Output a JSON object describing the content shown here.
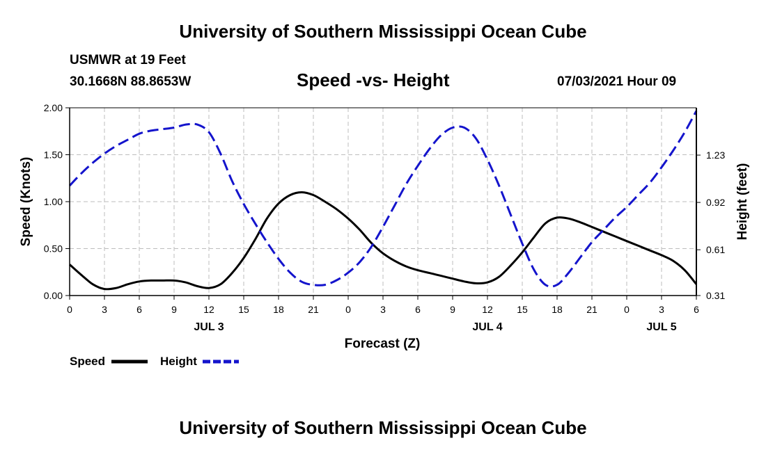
{
  "header": {
    "title": "University of Southern Mississippi Ocean Cube",
    "station": "USMWR at 19 Feet",
    "coordinates": "30.1668N  88.8653W",
    "date": "07/03/2021 Hour 09"
  },
  "footer": {
    "title": "University of Southern Mississippi Ocean Cube"
  },
  "colors": {
    "speed": "#000000",
    "height": "#1414cc",
    "grid": "#bdbdbd"
  },
  "chart_data": {
    "type": "line",
    "title": "Speed -vs- Height",
    "xlabel": "Forecast (Z)",
    "ylabel": "Speed (Knots)",
    "y2label": "Height (feet)",
    "xlim": [
      0,
      54
    ],
    "ylim": [
      0,
      2
    ],
    "y2lim": [
      0.31,
      1.54
    ],
    "grid": true,
    "legend": "bottom-left",
    "x_ticks": [
      0,
      3,
      6,
      9,
      12,
      15,
      18,
      21,
      24,
      27,
      30,
      33,
      36,
      39,
      42,
      45,
      48,
      51,
      54
    ],
    "x_tick_labels": [
      "0",
      "3",
      "6",
      "9",
      "12",
      "15",
      "18",
      "21",
      "0",
      "3",
      "6",
      "9",
      "12",
      "15",
      "18",
      "21",
      "0",
      "3",
      "6"
    ],
    "y_ticks": [
      0,
      0.5,
      1,
      1.5,
      2
    ],
    "y_tick_labels": [
      "0.00",
      "0.50",
      "1.00",
      "1.50",
      "2.00"
    ],
    "y2_ticks": [
      0.31,
      0.61,
      0.92,
      1.23
    ],
    "y2_tick_labels": [
      "0.31",
      "0.61",
      "0.92",
      "1.23"
    ],
    "day_labels": [
      {
        "x": 12,
        "label": "JUL 3"
      },
      {
        "x": 36,
        "label": "JUL 4"
      },
      {
        "x": 51,
        "label": "JUL 5"
      }
    ],
    "series": [
      {
        "name": "Speed",
        "axis": "left",
        "style": "solid",
        "x": [
          0,
          1,
          2,
          3,
          4,
          5,
          6,
          7,
          8,
          9,
          10,
          11,
          12,
          13,
          14,
          15,
          16,
          17,
          18,
          19,
          20,
          21,
          22,
          23,
          24,
          25,
          26,
          27,
          28,
          29,
          30,
          31,
          32,
          33,
          34,
          35,
          36,
          37,
          38,
          39,
          40,
          41,
          42,
          43,
          44,
          45,
          46,
          47,
          48,
          49,
          50,
          51,
          52,
          53,
          54
        ],
        "values": [
          0.33,
          0.22,
          0.12,
          0.07,
          0.08,
          0.12,
          0.15,
          0.16,
          0.16,
          0.16,
          0.14,
          0.1,
          0.08,
          0.12,
          0.24,
          0.4,
          0.6,
          0.82,
          0.98,
          1.07,
          1.1,
          1.07,
          1.0,
          0.92,
          0.82,
          0.7,
          0.56,
          0.45,
          0.37,
          0.31,
          0.27,
          0.24,
          0.21,
          0.18,
          0.15,
          0.13,
          0.14,
          0.2,
          0.32,
          0.46,
          0.62,
          0.77,
          0.83,
          0.82,
          0.78,
          0.73,
          0.68,
          0.63,
          0.58,
          0.53,
          0.48,
          0.43,
          0.37,
          0.27,
          0.12
        ]
      },
      {
        "name": "Height",
        "axis": "right",
        "style": "dashed",
        "x": [
          0,
          1,
          2,
          3,
          4,
          5,
          6,
          7,
          8,
          9,
          10,
          11,
          12,
          13,
          14,
          15,
          16,
          17,
          18,
          19,
          20,
          21,
          22,
          23,
          24,
          25,
          26,
          27,
          28,
          29,
          30,
          31,
          32,
          33,
          34,
          35,
          36,
          37,
          38,
          39,
          40,
          41,
          42,
          43,
          44,
          45,
          46,
          47,
          48,
          49,
          50,
          51,
          52,
          53,
          54
        ],
        "values": [
          1.03,
          1.11,
          1.18,
          1.24,
          1.29,
          1.33,
          1.37,
          1.39,
          1.4,
          1.41,
          1.43,
          1.43,
          1.38,
          1.24,
          1.06,
          0.91,
          0.78,
          0.66,
          0.55,
          0.46,
          0.4,
          0.38,
          0.38,
          0.41,
          0.46,
          0.53,
          0.63,
          0.76,
          0.9,
          1.04,
          1.16,
          1.27,
          1.36,
          1.41,
          1.41,
          1.34,
          1.2,
          1.03,
          0.84,
          0.65,
          0.48,
          0.38,
          0.38,
          0.46,
          0.56,
          0.66,
          0.74,
          0.82,
          0.89,
          0.97,
          1.05,
          1.15,
          1.26,
          1.38,
          1.52
        ]
      }
    ]
  }
}
